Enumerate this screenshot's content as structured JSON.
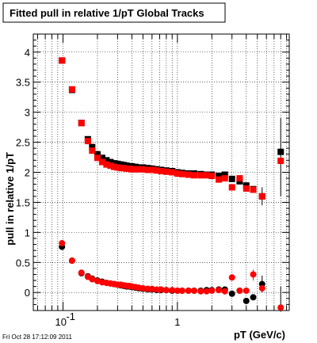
{
  "timestamp": "Fri Oct 28 17:12:09 2011",
  "colors": {
    "series_black": "#000000",
    "series_red": "#ff0000",
    "grid": "#000000",
    "frame": "#000000"
  },
  "chart_data": {
    "type": "scatter",
    "title": "Fitted pull in relative 1/pT  Global Tracks",
    "xlabel": "pT (GeV/c)",
    "ylabel": "pull in relative 1/pT",
    "x_scale": "log",
    "xlim": [
      0.055,
      9.5
    ],
    "ylim": [
      -0.3,
      4.3
    ],
    "x_ticks": [
      {
        "value": 0.1,
        "label": "10^-1"
      },
      {
        "value": 1,
        "label": "1"
      }
    ],
    "y_ticks": [
      {
        "value": 0,
        "label": "0"
      },
      {
        "value": 0.5,
        "label": "0.5"
      },
      {
        "value": 1,
        "label": "1"
      },
      {
        "value": 1.5,
        "label": "1.5"
      },
      {
        "value": 2,
        "label": "2"
      },
      {
        "value": 2.5,
        "label": "2.5"
      },
      {
        "value": 3,
        "label": "3"
      },
      {
        "value": 3.5,
        "label": "3.5"
      },
      {
        "value": 4,
        "label": "4"
      }
    ],
    "grid": true,
    "series": [
      {
        "color": "#000000",
        "role": "upper",
        "points": [
          {
            "x": 0.098,
            "y": 3.86
          },
          {
            "x": 0.12,
            "y": 3.37
          },
          {
            "x": 0.145,
            "y": 2.82
          },
          {
            "x": 0.165,
            "y": 2.55
          },
          {
            "x": 0.18,
            "y": 2.42
          },
          {
            "x": 0.2,
            "y": 2.3
          },
          {
            "x": 0.22,
            "y": 2.24
          },
          {
            "x": 0.24,
            "y": 2.2
          },
          {
            "x": 0.26,
            "y": 2.17
          },
          {
            "x": 0.28,
            "y": 2.15
          },
          {
            "x": 0.3,
            "y": 2.14
          },
          {
            "x": 0.32,
            "y": 2.13
          },
          {
            "x": 0.34,
            "y": 2.12
          },
          {
            "x": 0.36,
            "y": 2.11
          },
          {
            "x": 0.38,
            "y": 2.1
          },
          {
            "x": 0.4,
            "y": 2.1
          },
          {
            "x": 0.43,
            "y": 2.09
          },
          {
            "x": 0.46,
            "y": 2.08
          },
          {
            "x": 0.5,
            "y": 2.08
          },
          {
            "x": 0.55,
            "y": 2.07
          },
          {
            "x": 0.6,
            "y": 2.06
          },
          {
            "x": 0.66,
            "y": 2.05
          },
          {
            "x": 0.72,
            "y": 2.04
          },
          {
            "x": 0.8,
            "y": 2.03
          },
          {
            "x": 0.9,
            "y": 2.02
          },
          {
            "x": 1.0,
            "y": 2.0
          },
          {
            "x": 1.1,
            "y": 1.99
          },
          {
            "x": 1.25,
            "y": 1.98
          },
          {
            "x": 1.4,
            "y": 1.98
          },
          {
            "x": 1.6,
            "y": 1.97
          },
          {
            "x": 1.8,
            "y": 1.96
          },
          {
            "x": 2.0,
            "y": 1.96
          },
          {
            "x": 2.3,
            "y": 1.94
          },
          {
            "x": 2.6,
            "y": 1.96
          },
          {
            "x": 3.0,
            "y": 1.89
          },
          {
            "x": 3.5,
            "y": 1.85
          },
          {
            "x": 4.0,
            "y": 1.78
          },
          {
            "x": 4.6,
            "y": 1.72
          },
          {
            "x": 5.5,
            "y": 1.6
          },
          {
            "x": 8.0,
            "y": 2.34
          }
        ]
      },
      {
        "color": "#ff0000",
        "role": "upper",
        "points": [
          {
            "x": 0.098,
            "y": 3.86
          },
          {
            "x": 0.12,
            "y": 3.38
          },
          {
            "x": 0.145,
            "y": 2.82
          },
          {
            "x": 0.165,
            "y": 2.52
          },
          {
            "x": 0.18,
            "y": 2.36
          },
          {
            "x": 0.2,
            "y": 2.24
          },
          {
            "x": 0.22,
            "y": 2.17
          },
          {
            "x": 0.24,
            "y": 2.13
          },
          {
            "x": 0.26,
            "y": 2.11
          },
          {
            "x": 0.28,
            "y": 2.09
          },
          {
            "x": 0.3,
            "y": 2.08
          },
          {
            "x": 0.32,
            "y": 2.07
          },
          {
            "x": 0.34,
            "y": 2.07
          },
          {
            "x": 0.36,
            "y": 2.06
          },
          {
            "x": 0.38,
            "y": 2.06
          },
          {
            "x": 0.4,
            "y": 2.05
          },
          {
            "x": 0.43,
            "y": 2.05
          },
          {
            "x": 0.46,
            "y": 2.05
          },
          {
            "x": 0.5,
            "y": 2.05
          },
          {
            "x": 0.55,
            "y": 2.04
          },
          {
            "x": 0.6,
            "y": 2.04
          },
          {
            "x": 0.66,
            "y": 2.03
          },
          {
            "x": 0.72,
            "y": 2.02
          },
          {
            "x": 0.8,
            "y": 2.01
          },
          {
            "x": 0.9,
            "y": 2.0
          },
          {
            "x": 1.0,
            "y": 1.98
          },
          {
            "x": 1.1,
            "y": 1.97
          },
          {
            "x": 1.25,
            "y": 1.96
          },
          {
            "x": 1.4,
            "y": 1.95
          },
          {
            "x": 1.6,
            "y": 1.95
          },
          {
            "x": 1.8,
            "y": 1.95
          },
          {
            "x": 2.0,
            "y": 1.94
          },
          {
            "x": 2.3,
            "y": 1.88
          },
          {
            "x": 2.6,
            "y": 1.9
          },
          {
            "x": 3.0,
            "y": 1.75
          },
          {
            "x": 3.5,
            "y": 1.9
          },
          {
            "x": 4.0,
            "y": 1.73
          },
          {
            "x": 4.6,
            "y": 1.71
          },
          {
            "x": 5.5,
            "y": 1.6
          },
          {
            "x": 8.0,
            "y": 2.19
          }
        ]
      },
      {
        "color": "#000000",
        "role": "lower",
        "points": [
          {
            "x": 0.098,
            "y": 0.76
          },
          {
            "x": 0.12,
            "y": 0.53
          },
          {
            "x": 0.145,
            "y": 0.32
          },
          {
            "x": 0.165,
            "y": 0.27
          },
          {
            "x": 0.18,
            "y": 0.23
          },
          {
            "x": 0.2,
            "y": 0.2
          },
          {
            "x": 0.22,
            "y": 0.18
          },
          {
            "x": 0.24,
            "y": 0.16
          },
          {
            "x": 0.26,
            "y": 0.15
          },
          {
            "x": 0.28,
            "y": 0.14
          },
          {
            "x": 0.3,
            "y": 0.13
          },
          {
            "x": 0.32,
            "y": 0.12
          },
          {
            "x": 0.34,
            "y": 0.11
          },
          {
            "x": 0.36,
            "y": 0.1
          },
          {
            "x": 0.38,
            "y": 0.1
          },
          {
            "x": 0.4,
            "y": 0.09
          },
          {
            "x": 0.43,
            "y": 0.08
          },
          {
            "x": 0.46,
            "y": 0.07
          },
          {
            "x": 0.5,
            "y": 0.06
          },
          {
            "x": 0.55,
            "y": 0.05
          },
          {
            "x": 0.6,
            "y": 0.05
          },
          {
            "x": 0.66,
            "y": 0.04
          },
          {
            "x": 0.72,
            "y": 0.04
          },
          {
            "x": 0.8,
            "y": 0.04
          },
          {
            "x": 0.9,
            "y": 0.03
          },
          {
            "x": 1.0,
            "y": 0.03
          },
          {
            "x": 1.1,
            "y": 0.03
          },
          {
            "x": 1.25,
            "y": 0.03
          },
          {
            "x": 1.4,
            "y": 0.03
          },
          {
            "x": 1.6,
            "y": 0.03
          },
          {
            "x": 1.8,
            "y": 0.04
          },
          {
            "x": 2.0,
            "y": 0.04
          },
          {
            "x": 2.3,
            "y": 0.05
          },
          {
            "x": 2.6,
            "y": 0.05
          },
          {
            "x": 3.0,
            "y": -0.02
          },
          {
            "x": 3.5,
            "y": 0.03
          },
          {
            "x": 4.0,
            "y": -0.14
          },
          {
            "x": 4.6,
            "y": -0.08
          },
          {
            "x": 5.5,
            "y": 0.14
          }
        ]
      },
      {
        "color": "#ff0000",
        "role": "lower",
        "points": [
          {
            "x": 0.098,
            "y": 0.82
          },
          {
            "x": 0.12,
            "y": 0.53
          },
          {
            "x": 0.145,
            "y": 0.33
          },
          {
            "x": 0.165,
            "y": 0.26
          },
          {
            "x": 0.18,
            "y": 0.22
          },
          {
            "x": 0.2,
            "y": 0.19
          },
          {
            "x": 0.22,
            "y": 0.17
          },
          {
            "x": 0.24,
            "y": 0.16
          },
          {
            "x": 0.26,
            "y": 0.15
          },
          {
            "x": 0.28,
            "y": 0.14
          },
          {
            "x": 0.3,
            "y": 0.13
          },
          {
            "x": 0.32,
            "y": 0.13
          },
          {
            "x": 0.34,
            "y": 0.12
          },
          {
            "x": 0.36,
            "y": 0.11
          },
          {
            "x": 0.38,
            "y": 0.11
          },
          {
            "x": 0.4,
            "y": 0.1
          },
          {
            "x": 0.43,
            "y": 0.09
          },
          {
            "x": 0.46,
            "y": 0.08
          },
          {
            "x": 0.5,
            "y": 0.07
          },
          {
            "x": 0.55,
            "y": 0.06
          },
          {
            "x": 0.6,
            "y": 0.06
          },
          {
            "x": 0.66,
            "y": 0.05
          },
          {
            "x": 0.72,
            "y": 0.05
          },
          {
            "x": 0.8,
            "y": 0.04
          },
          {
            "x": 0.9,
            "y": 0.04
          },
          {
            "x": 1.0,
            "y": 0.03
          },
          {
            "x": 1.1,
            "y": 0.03
          },
          {
            "x": 1.25,
            "y": 0.03
          },
          {
            "x": 1.4,
            "y": 0.03
          },
          {
            "x": 1.6,
            "y": 0.02
          },
          {
            "x": 1.8,
            "y": 0.02
          },
          {
            "x": 2.0,
            "y": 0.03
          },
          {
            "x": 2.3,
            "y": 0.04
          },
          {
            "x": 2.6,
            "y": 0.02
          },
          {
            "x": 3.0,
            "y": 0.25
          },
          {
            "x": 3.5,
            "y": 0.03
          },
          {
            "x": 4.0,
            "y": 0.03
          },
          {
            "x": 4.6,
            "y": 0.3
          },
          {
            "x": 5.5,
            "y": 0.07
          },
          {
            "x": 8.0,
            "y": -0.25
          }
        ]
      }
    ],
    "error_bars": [
      {
        "x": 8.0,
        "y_low": 1.6,
        "y_high": 2.9,
        "color": "#000000"
      },
      {
        "x": 5.5,
        "y_low": 1.45,
        "y_high": 1.75,
        "color": "#000000"
      },
      {
        "x": 8.0,
        "y_low": -0.32,
        "y_high": 0.1,
        "color": "#000000"
      },
      {
        "x": 5.5,
        "y_low": 0.0,
        "y_high": 0.28,
        "color": "#000000"
      },
      {
        "x": 4.6,
        "y_low": 0.2,
        "y_high": 0.38,
        "color": "#ff0000"
      }
    ]
  }
}
